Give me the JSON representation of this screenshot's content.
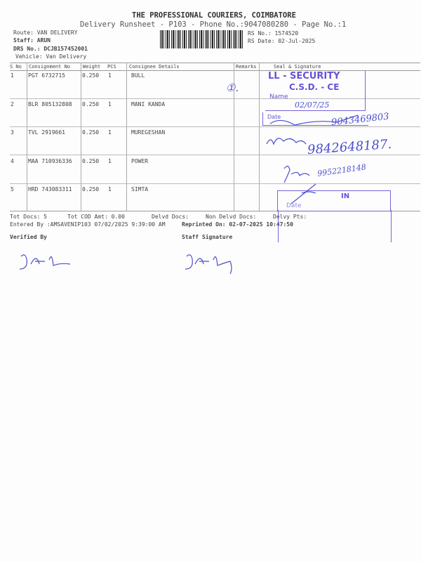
{
  "header": {
    "company": "THE PROFESSIONAL COURIERS, COIMBATORE",
    "subtitle": "Delivery Runsheet - P103 - Phone No.:9047080280 - Page No.:1",
    "route": "Route: VAN DELIVERY",
    "staff": "Staff: ARUN",
    "drs_no": "DRS No.: DCJB157452001",
    "vehicle": "Vehicle: Van Delivery",
    "rs_no": "RS No.: 1574520",
    "rs_date": "RS Date: 02-Jul-2025"
  },
  "table": {
    "columns": [
      "S No",
      "Consignment No",
      "Weight",
      "PCS",
      "Consignee Details",
      "Remarks",
      "Seal & Signature"
    ],
    "rows": [
      {
        "sno": "1",
        "consignment": "PGT 6732715",
        "weight": "0.250",
        "pcs": "1",
        "consignee": "BULL"
      },
      {
        "sno": "2",
        "consignment": "BLR 805132808",
        "weight": "0.250",
        "pcs": "1",
        "consignee": "MANI KANDA"
      },
      {
        "sno": "3",
        "consignment": "TVL 2919661",
        "weight": "0.250",
        "pcs": "1",
        "consignee": "MUREGESHAN"
      },
      {
        "sno": "4",
        "consignment": "MAA 710936336",
        "weight": "0.250",
        "pcs": "1",
        "consignee": "POWER"
      },
      {
        "sno": "5",
        "consignment": "HRD 743083311",
        "weight": "0.250",
        "pcs": "1",
        "consignee": "SIMTA"
      }
    ]
  },
  "footer": {
    "tot_docs": "Tot Docs:   5",
    "tot_cod": "Tot COD Amt:    0.00",
    "delvd": "Delvd Docs:",
    "non_delvd": "Non Delvd Docs:",
    "delvy_pts": "Delvy Pts:",
    "entered_by": "Entered By :AMSAVENIP103 07/02/2025 9:39:00 AM",
    "reprinted": "Reprinted On: 02-07-2025 10:47:50",
    "verified_by": "Verified By",
    "staff_signature": "Staff Signature"
  },
  "stamps": {
    "security_line1": "LL - SECURITY",
    "security_line2": "C.S.D. - CE",
    "name_label": "Name",
    "date_label": "Date",
    "stamp2_text": "IN",
    "stamp2_date": "Date"
  },
  "handwriting": {
    "mark1": "①.",
    "date1": "02/07/25",
    "phone1": "9043469803",
    "phone2": "9842648187.",
    "phone3": "9952218148"
  },
  "colors": {
    "ink": "#6a50d8",
    "pen": "#4a4fd0"
  }
}
